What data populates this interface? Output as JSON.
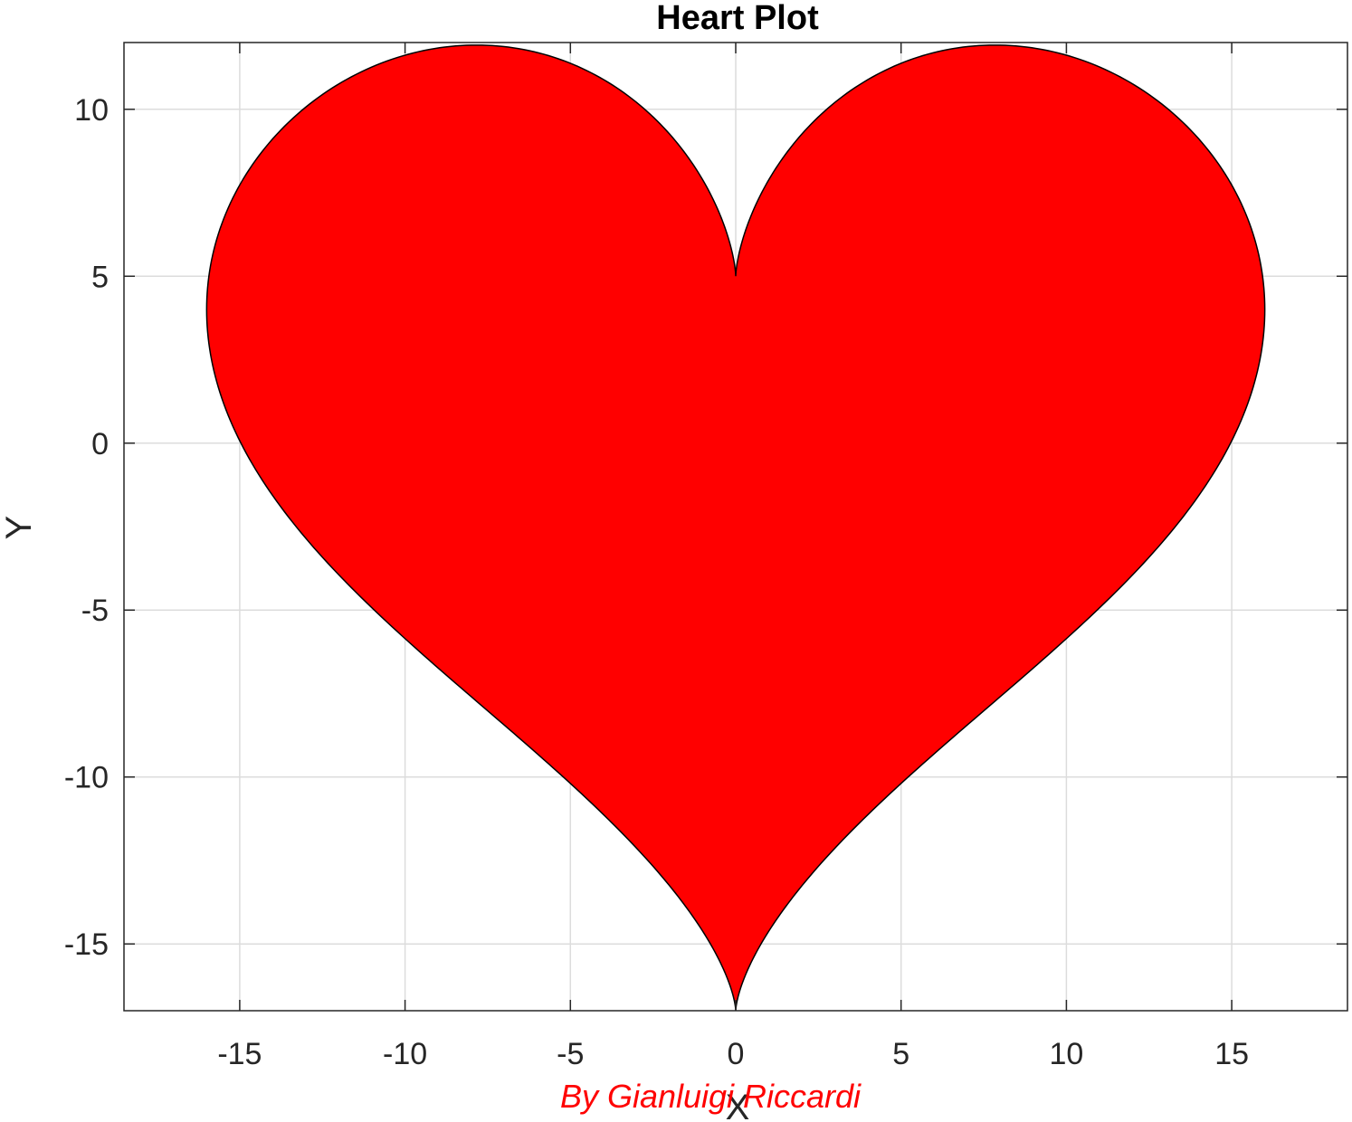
{
  "chart_data": {
    "type": "area",
    "title": "Heart Plot",
    "xlabel": "X",
    "ylabel": "Y",
    "xlim": [
      -18.5,
      18.5
    ],
    "ylim": [
      -17,
      12
    ],
    "xticks": [
      -15,
      -10,
      -5,
      0,
      5,
      10,
      15
    ],
    "yticks": [
      -15,
      -10,
      -5,
      0,
      5,
      10
    ],
    "xtick_labels": [
      "-15",
      "-10",
      "-5",
      "0",
      "5",
      "10",
      "15"
    ],
    "ytick_labels": [
      "-15",
      "-10",
      "-5",
      "0",
      "5",
      "10"
    ],
    "grid": true,
    "series": [
      {
        "x": [
          0,
          0.94,
          3.62,
          7.56,
          11.88,
          15.3,
          16,
          14.8,
          11.2,
          7.2,
          3.6,
          1.2,
          0,
          -1.2,
          -3.6,
          -7.2,
          -11.2,
          -14.8,
          -16,
          -15.3,
          -11.88,
          -7.56,
          -3.62,
          -0.94,
          0
        ],
        "y": [
          5,
          8.4,
          11.2,
          12,
          10,
          6,
          4,
          0,
          -4,
          -8,
          -11,
          -13.8,
          -17,
          -13.8,
          -11,
          -8,
          -4,
          0,
          4,
          6,
          10,
          12,
          11.2,
          8.4,
          5
        ]
      }
    ],
    "fill_color": "#ff0000",
    "edge_color": "#000000",
    "annotation": "By Gianluigi Riccardi",
    "annotation_color": "#ff0000"
  }
}
